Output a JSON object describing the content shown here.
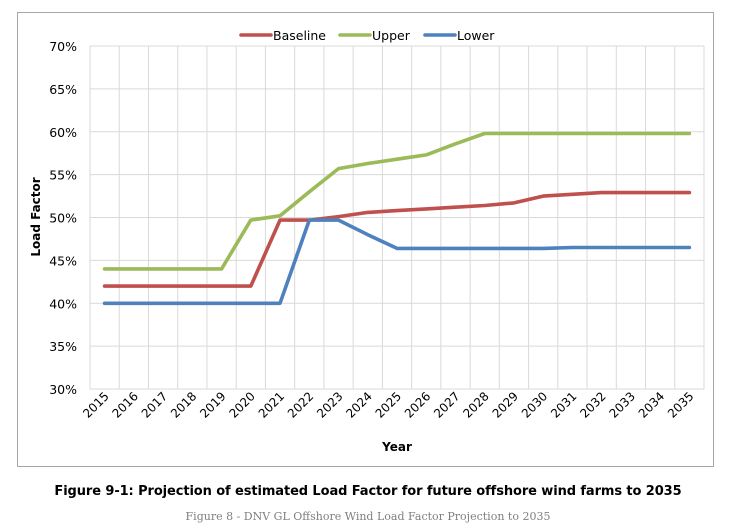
{
  "chart_data": {
    "type": "line",
    "title": "",
    "xlabel": "Year",
    "ylabel": "Load Factor",
    "ylim": [
      30,
      70
    ],
    "y_ticks": [
      30,
      35,
      40,
      45,
      50,
      55,
      60,
      65,
      70
    ],
    "y_tick_labels": [
      "30%",
      "35%",
      "40%",
      "45%",
      "50%",
      "55%",
      "60%",
      "65%",
      "70%"
    ],
    "grid": true,
    "legend_position": "top-center",
    "categories": [
      "2015",
      "2016",
      "2017",
      "2018",
      "2019",
      "2020",
      "2021",
      "2022",
      "2023",
      "2024",
      "2025",
      "2026",
      "2027",
      "2028",
      "2029",
      "2030",
      "2031",
      "2032",
      "2033",
      "2034",
      "2035"
    ],
    "series": [
      {
        "name": "Baseline",
        "color": "#C0504D",
        "values": [
          42.0,
          42.0,
          42.0,
          42.0,
          42.0,
          42.0,
          49.7,
          49.7,
          50.1,
          50.6,
          50.8,
          51.0,
          51.2,
          51.4,
          51.7,
          52.5,
          52.7,
          52.9,
          52.9,
          52.9,
          52.9
        ]
      },
      {
        "name": "Upper",
        "color": "#9BBB59",
        "values": [
          44.0,
          44.0,
          44.0,
          44.0,
          44.0,
          49.7,
          50.2,
          53.0,
          55.7,
          56.3,
          56.8,
          57.3,
          58.6,
          59.8,
          59.8,
          59.8,
          59.8,
          59.8,
          59.8,
          59.8,
          59.8
        ]
      },
      {
        "name": "Lower",
        "color": "#4F81BD",
        "values": [
          40.0,
          40.0,
          40.0,
          40.0,
          40.0,
          40.0,
          40.0,
          49.7,
          49.7,
          48.0,
          46.4,
          46.4,
          46.4,
          46.4,
          46.4,
          46.4,
          46.5,
          46.5,
          46.5,
          46.5,
          46.5
        ]
      }
    ]
  },
  "captions": {
    "figure_title": "Figure 9-1: Projection of estimated Load Factor for future offshore wind farms to 2035",
    "figure_subtitle": "Figure 8 - DNV GL Offshore Wind Load Factor Projection to 2035"
  },
  "colors": {
    "gridline": "#d9d9d9",
    "frame": "#a6a6a6",
    "text": "#000000",
    "caption_gray": "#7f7f7f"
  }
}
